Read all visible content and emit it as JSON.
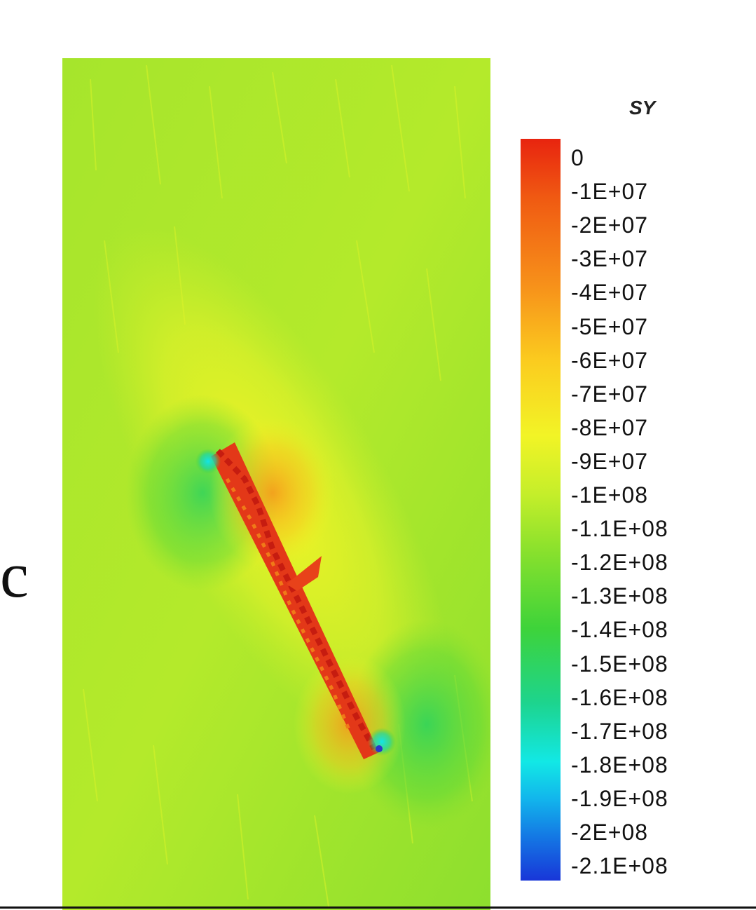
{
  "figure": {
    "panel_label": "c",
    "legend_title": "SY",
    "colorbar_ticks": [
      "0",
      "-1E+07",
      "-2E+07",
      "-3E+07",
      "-4E+07",
      "-5E+07",
      "-6E+07",
      "-7E+07",
      "-8E+07",
      "-9E+07",
      "-1E+08",
      "-1.1E+08",
      "-1.2E+08",
      "-1.3E+08",
      "-1.4E+08",
      "-1.5E+08",
      "-1.6E+08",
      "-1.7E+08",
      "-1.8E+08",
      "-1.9E+08",
      "-2E+08",
      "-2.1E+08"
    ],
    "colormap": {
      "max_color": "#e8240f",
      "mid_color": "#f2f426",
      "low_mid_color": "#3ed33a",
      "min_color": "#1836d8",
      "background_field_color": "#9fe52c"
    }
  }
}
